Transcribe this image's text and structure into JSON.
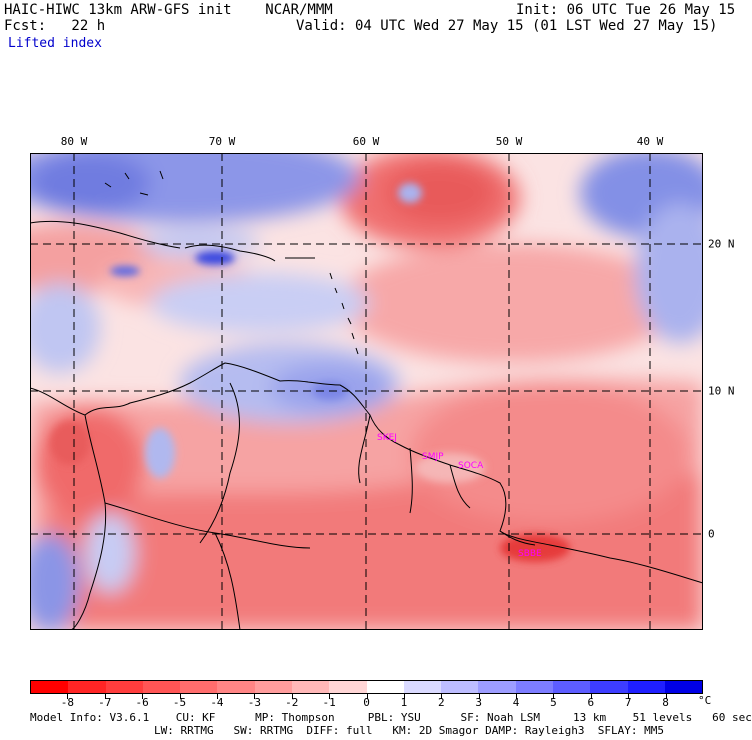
{
  "header": {
    "model_title": "HAIC-HIWC 13km ARW-GFS init    NCAR/MMM",
    "init_time": "Init: 06 UTC Tue 26 May 15",
    "fcst_label": "Fcst:   22 h",
    "valid_time": "Valid: 04 UTC Wed 27 May 15 (01 LST Wed 27 May 15)",
    "field_name": "Lifted index"
  },
  "map": {
    "longitude_labels": [
      "80 W",
      "70 W",
      "60 W",
      "50 W",
      "40 W"
    ],
    "latitude_labels": [
      "20 N",
      "10 N",
      "0"
    ],
    "station_labels": [
      "SKEJ",
      "SMJP",
      "SOCA",
      "SBBE"
    ],
    "colors": {
      "strong_unstable": "#e8302f",
      "unstable": "#f27575",
      "weak_unstable": "#f9b2b2",
      "neutral": "#fde9e9",
      "weak_stable": "#c9cff2",
      "stable": "#7a86e6",
      "strong_stable": "#2b3bdc",
      "coast": "#000000",
      "grid": "#000000",
      "labels": "#ff00ff"
    }
  },
  "colorbar": {
    "unit": "°C",
    "tick_labels": [
      "-8",
      "-7",
      "-6",
      "-5",
      "-4",
      "-3",
      "-2",
      "-1",
      "0",
      "1",
      "2",
      "3",
      "4",
      "5",
      "6",
      "7",
      "8"
    ],
    "colors": [
      "#ff0000",
      "#ff2525",
      "#ff3d3d",
      "#ff5555",
      "#ff6d6d",
      "#ff8585",
      "#ff9d9d",
      "#ffb8b8",
      "#ffd6d6",
      "#ffffff",
      "#dadaff",
      "#bdbdff",
      "#9d9dff",
      "#7d7dff",
      "#5d5dff",
      "#3d3dff",
      "#1f1fff",
      "#0000e6"
    ]
  },
  "footer": {
    "line1": "Model Info: V3.6.1    CU: KF      MP: Thompson     PBL: YSU      SF: Noah LSM     13 km    51 levels   60 sec",
    "line2": "LW: RRTMG   SW: RRTMG  DIFF: full   KM: 2D Smagor DAMP: Rayleigh3  SFLAY: MM5"
  }
}
